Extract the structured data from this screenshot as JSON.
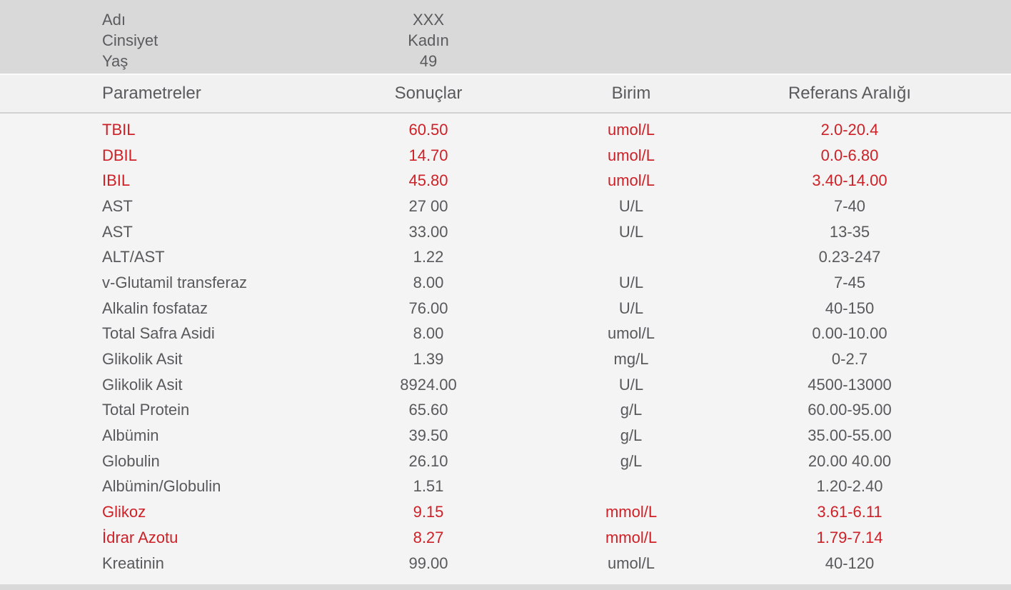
{
  "patient": {
    "fields": [
      {
        "label": "Adı",
        "value": "XXX"
      },
      {
        "label": "Cinsiyet",
        "value": "Kadın"
      },
      {
        "label": "Yaş",
        "value": "49"
      }
    ]
  },
  "table": {
    "columns": [
      "Parametreler",
      "Sonuçlar",
      "Birim",
      "Referans Aralığı"
    ],
    "rows": [
      {
        "parameter": "TBIL",
        "result": "60.50",
        "unit": "umol/L",
        "range": "2.0-20.4",
        "abnormal": true
      },
      {
        "parameter": "DBIL",
        "result": "14.70",
        "unit": "umol/L",
        "range": "0.0-6.80",
        "abnormal": true
      },
      {
        "parameter": "IBIL",
        "result": "45.80",
        "unit": "umol/L",
        "range": "3.40-14.00",
        "abnormal": true
      },
      {
        "parameter": "AST",
        "result": "27 00",
        "unit": "U/L",
        "range": "7-40",
        "abnormal": false
      },
      {
        "parameter": "AST",
        "result": "33.00",
        "unit": "U/L",
        "range": "13-35",
        "abnormal": false
      },
      {
        "parameter": "ALT/AST",
        "result": "1.22",
        "unit": "",
        "range": "0.23-247",
        "abnormal": false
      },
      {
        "parameter": "v-Glutamil transferaz",
        "result": "8.00",
        "unit": "U/L",
        "range": "7-45",
        "abnormal": false
      },
      {
        "parameter": "Alkalin fosfataz",
        "result": "76.00",
        "unit": "U/L",
        "range": "40-150",
        "abnormal": false
      },
      {
        "parameter": "Total Safra Asidi",
        "result": "8.00",
        "unit": "umol/L",
        "range": "0.00-10.00",
        "abnormal": false
      },
      {
        "parameter": "Glikolik Asit",
        "result": "1.39",
        "unit": "mg/L",
        "range": "0-2.7",
        "abnormal": false
      },
      {
        "parameter": "Glikolik Asit",
        "result": "8924.00",
        "unit": "U/L",
        "range": "4500-13000",
        "abnormal": false
      },
      {
        "parameter": "Total Protein",
        "result": "65.60",
        "unit": "g/L",
        "range": "60.00-95.00",
        "abnormal": false
      },
      {
        "parameter": "Albümin",
        "result": "39.50",
        "unit": "g/L",
        "range": "35.00-55.00",
        "abnormal": false
      },
      {
        "parameter": "Globulin",
        "result": "26.10",
        "unit": "g/L",
        "range": "20.00 40.00",
        "abnormal": false
      },
      {
        "parameter": "Albümin/Globulin",
        "result": "1.51",
        "unit": "",
        "range": "1.20-2.40",
        "abnormal": false
      },
      {
        "parameter": "Glikoz",
        "result": "9.15",
        "unit": "mmol/L",
        "range": "3.61-6.11",
        "abnormal": true
      },
      {
        "parameter": "İdrar Azotu",
        "result": "8.27",
        "unit": "mmol/L",
        "range": "1.79-7.14",
        "abnormal": true
      },
      {
        "parameter": "Kreatinin",
        "result": "99.00",
        "unit": "umol/L",
        "range": "40-120",
        "abnormal": false
      }
    ]
  },
  "colors": {
    "abnormal_text": "#ce2127",
    "normal_text": "#58595b",
    "band_background": "#d9d9d9",
    "body_background": "#f4f4f4"
  }
}
